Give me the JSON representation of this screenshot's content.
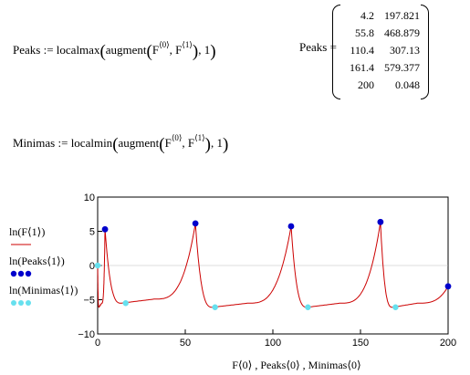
{
  "worksheet": {
    "peaks_def": {
      "lhs": "Peaks",
      "op": ":=",
      "fn": "localmax",
      "inner": "augment",
      "arg0": "F",
      "arg1": "F",
      "sup0": "⟨0⟩",
      "sup1": "⟨1⟩",
      "tail": ", 1"
    },
    "minimas_def": {
      "lhs": "Minimas",
      "op": ":=",
      "fn": "localmin",
      "inner": "augment",
      "arg0": "F",
      "arg1": "F",
      "sup0": "⟨0⟩",
      "sup1": "⟨1⟩",
      "tail": ", 1"
    },
    "peaks_result": {
      "lhs": "Peaks",
      "op": "=",
      "rows": [
        [
          "4.2",
          "197.821"
        ],
        [
          "55.8",
          "468.879"
        ],
        [
          "110.4",
          "307.13"
        ],
        [
          "161.4",
          "579.377"
        ],
        [
          "200",
          "0.048"
        ]
      ]
    }
  },
  "colors": {
    "curve": "#cc0000",
    "peaks": "#0000cc",
    "minimas": "#66e0ee",
    "axis": "#000000"
  },
  "chart_data": {
    "type": "line",
    "xlim": [
      0,
      200
    ],
    "ylim": [
      -10,
      10
    ],
    "x_ticks": [
      "0",
      "50",
      "100",
      "150",
      "200"
    ],
    "y_ticks": [
      "10",
      "5",
      "0",
      "−5",
      "−10"
    ],
    "xlabel": "F⟨0⟩ , Peaks⟨0⟩ , Minimas⟨0⟩",
    "legend": [
      {
        "label": "ln(F⟨1⟩)",
        "style": "red line"
      },
      {
        "label": "ln(Peaks⟨1⟩)",
        "style": "blue dots"
      },
      {
        "label": "ln(Minimas⟨1⟩)",
        "style": "cyan dots"
      }
    ],
    "series": [
      {
        "name": "ln(Peaks⟨1⟩)",
        "type": "scatter",
        "x": [
          4.2,
          55.8,
          110.4,
          161.4,
          200
        ],
        "y": [
          5.29,
          6.15,
          5.73,
          6.36,
          -3.04
        ]
      },
      {
        "name": "ln(Minimas⟨1⟩)",
        "type": "scatter",
        "x": [
          0,
          16,
          67,
          120,
          170
        ],
        "y": [
          0,
          -5.5,
          -6.1,
          -6.1,
          -6.1
        ]
      }
    ],
    "curve_segments": [
      {
        "x0": 0,
        "x1": 4.2,
        "ystart": 0.4,
        "ypeak": 5.29,
        "ymin": -6.1
      },
      {
        "x0": 4.2,
        "x1": 55.8,
        "ystart": 5.29,
        "ypeak": 6.15,
        "ymin": -5.5
      },
      {
        "x0": 55.8,
        "x1": 110.4,
        "ystart": 6.15,
        "ypeak": 5.73,
        "ymin": -6.1
      },
      {
        "x0": 110.4,
        "x1": 161.4,
        "ystart": 5.73,
        "ypeak": 6.36,
        "ymin": -6.1
      },
      {
        "x0": 161.4,
        "x1": 200,
        "ystart": 6.36,
        "ypeak": -3.04,
        "ymin": -6.1
      }
    ]
  }
}
